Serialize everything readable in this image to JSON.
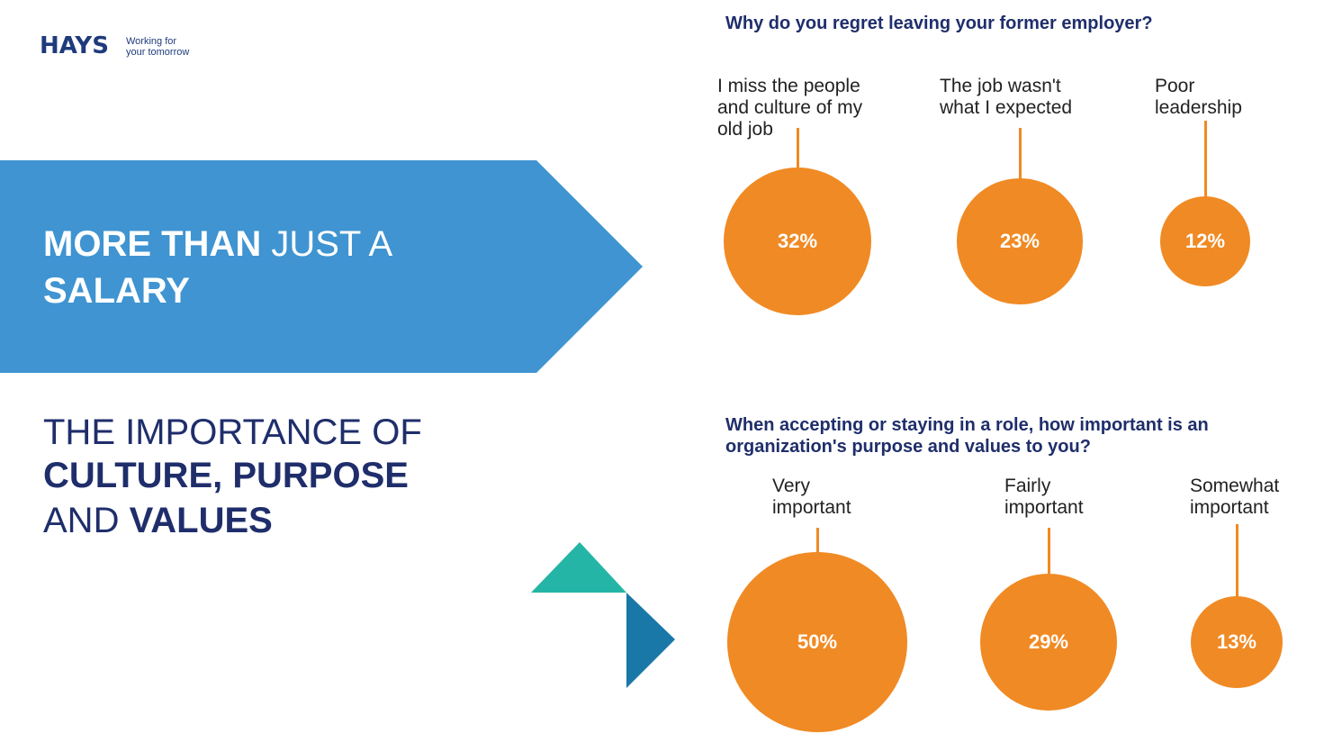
{
  "logo": {
    "name": "HAYS",
    "tagline_1": "Working for",
    "tagline_2": "your tomorrow"
  },
  "banner": {
    "line1_bold": "MORE THAN",
    "line1_light": "JUST A",
    "line2_bold": "SALARY",
    "color": "#3f94d1"
  },
  "subheading": {
    "line1_light": "THE IMPORTANCE OF",
    "line2_bold": "CULTURE, PURPOSE",
    "line3_light": "AND",
    "line3_bold": "VALUES"
  },
  "colors": {
    "bubble": "#f08a24",
    "navy": "#1f2e6b",
    "teal": "#25b5a6",
    "blue": "#1a78a8"
  },
  "chart_data": [
    {
      "type": "bubble",
      "title": "Why do you regret leaving your former employer?",
      "categories": [
        "I miss the people and culture of my old job",
        "The job wasn't what I expected",
        "Poor leadership"
      ],
      "label_lines": [
        [
          "I miss the people",
          "and culture of my",
          "old job"
        ],
        [
          "The job wasn't",
          "what I expected"
        ],
        [
          "Poor",
          "leadership"
        ]
      ],
      "values": [
        32,
        23,
        12
      ],
      "value_labels": [
        "32%",
        "23%",
        "12%"
      ],
      "unit": "%"
    },
    {
      "type": "bubble",
      "title": "When accepting or staying in a role, how important is an organization's purpose and values to you?",
      "title_lines": [
        "When accepting or staying in a role, how important is an",
        "organization's purpose and values to you?"
      ],
      "categories": [
        "Very important",
        "Fairly important",
        "Somewhat important"
      ],
      "label_lines": [
        [
          "Very",
          "important"
        ],
        [
          "Fairly",
          "important"
        ],
        [
          "Somewhat",
          "important"
        ]
      ],
      "values": [
        50,
        29,
        13
      ],
      "value_labels": [
        "50%",
        "29%",
        "13%"
      ],
      "unit": "%"
    }
  ]
}
